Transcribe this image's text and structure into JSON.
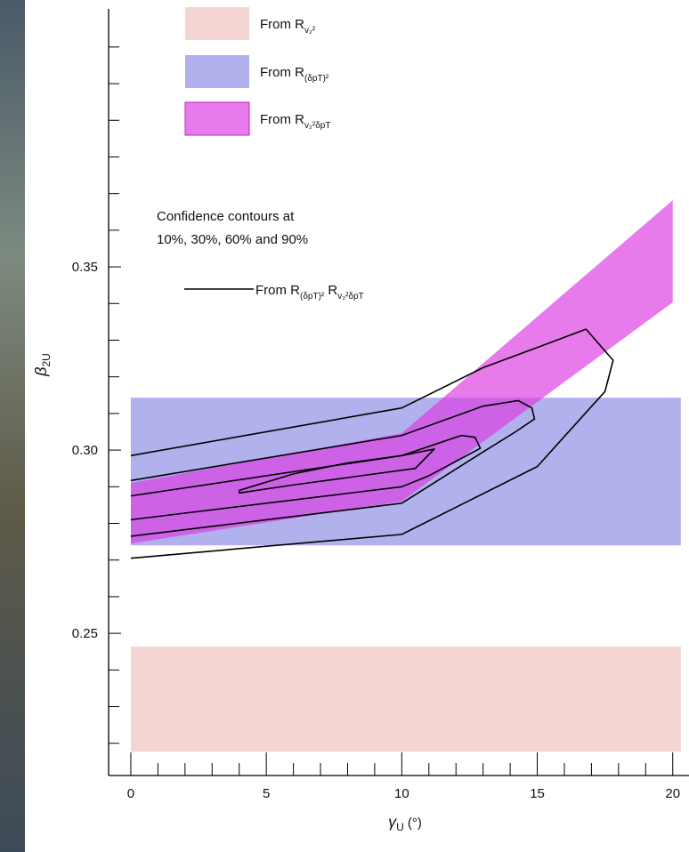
{
  "chart_data": {
    "type": "contour",
    "x_label": {
      "text": "γ",
      "sub": "U",
      "after": " (°)"
    },
    "y_label": {
      "text": "β",
      "sub": "2U"
    },
    "annotation": [
      "Confidence contours at",
      "10%, 30%, 60% and 90%"
    ],
    "xlim": [
      -0.82,
      20.6
    ],
    "ylim": [
      0.2112,
      0.4204
    ],
    "xticks": [
      0,
      5,
      10,
      15,
      20
    ],
    "yticks": [
      0.25,
      {
        "value": 0.3,
        "label": "0.30"
      },
      0.35
    ],
    "xminor": [
      1,
      2,
      3,
      4,
      6,
      7,
      8,
      9,
      11,
      12,
      13,
      14,
      16,
      17,
      18,
      19
    ],
    "yminor": [
      0.22,
      0.23,
      0.24,
      0.26,
      0.27,
      0.28,
      0.29,
      0.31,
      0.32,
      0.33,
      0.34,
      0.36,
      0.37,
      0.38,
      0.39,
      0.4,
      0.41
    ],
    "bands": [
      {
        "name": "From R",
        "sub": "v₂²",
        "color": "#f5d4d4",
        "x": [
          0,
          20.3
        ],
        "lower": [
          0.2177,
          0.2177
        ],
        "upper": [
          0.2464,
          0.2464
        ]
      },
      {
        "name": "From R",
        "sub": "(δpT)²",
        "color": "#b1b1ee",
        "x": [
          0,
          20.3
        ],
        "lower": [
          0.274,
          0.274
        ],
        "upper": [
          0.3143,
          0.3143
        ]
      },
      {
        "name": "From R",
        "sub": "v₂²δpT",
        "color": "rgba(220,60,225,0.68)",
        "x": [
          0,
          10,
          20
        ],
        "lower": [
          0.2745,
          0.286,
          0.3403
        ],
        "upper": [
          0.291,
          0.3046,
          0.3682
        ]
      }
    ],
    "contours": {
      "name": "From R",
      "sub": "(δpT)²",
      "name2": " R",
      "sub2": "v₂²δpT",
      "color": "#000000",
      "lines": [
        {
          "x": [
            0,
            10,
            13,
            15,
            16.8,
            17.8,
            17.5,
            15,
            10,
            0
          ],
          "y": [
            0.2985,
            0.3115,
            0.3225,
            0.328,
            0.333,
            0.3245,
            0.316,
            0.2955,
            0.277,
            0.2705
          ]
        },
        {
          "x": [
            0,
            10,
            13,
            14.3,
            14.8,
            14.9,
            14.2,
            13,
            10,
            0
          ],
          "y": [
            0.2917,
            0.304,
            0.312,
            0.3135,
            0.3115,
            0.3085,
            0.305,
            0.2995,
            0.2855,
            0.2765
          ]
        },
        {
          "x": [
            0,
            10,
            12.2,
            12.7,
            12.9,
            11,
            10,
            0
          ],
          "y": [
            0.2875,
            0.2985,
            0.304,
            0.3035,
            0.3005,
            0.293,
            0.29,
            0.281
          ]
        },
        {
          "x": [
            4,
            6,
            8,
            10,
            11.2,
            10.5,
            8,
            6,
            4,
            4
          ],
          "y": [
            0.289,
            0.2935,
            0.2965,
            0.2985,
            0.3003,
            0.295,
            0.2925,
            0.2905,
            0.2883,
            0.289
          ]
        }
      ]
    }
  }
}
